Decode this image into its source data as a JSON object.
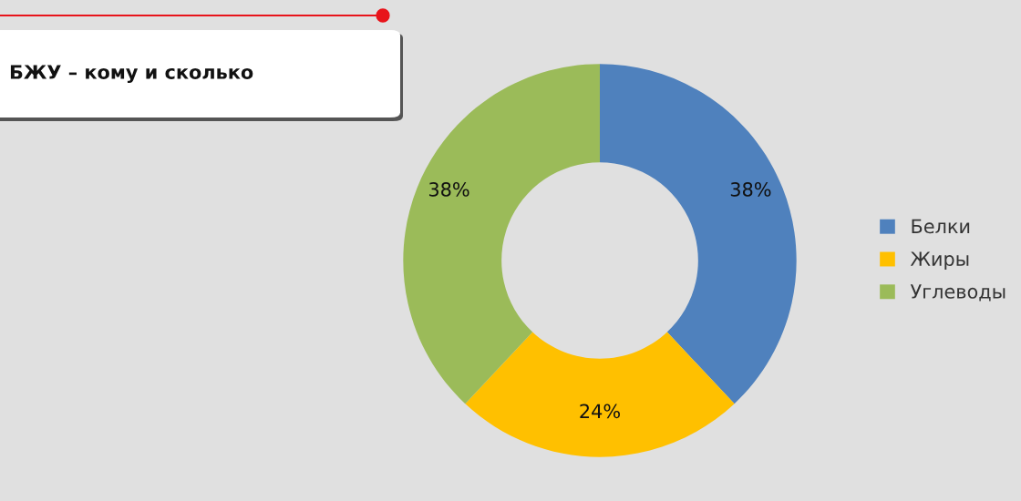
{
  "chart_data": {
    "type": "donut",
    "title": "БЖУ – кому и сколько",
    "categories": [
      "Белки",
      "Жиры",
      "Углеводы"
    ],
    "values": [
      38,
      24,
      38
    ],
    "colors": [
      "#4f81bd",
      "#ffc000",
      "#9bbb59"
    ],
    "value_labels": [
      "38%",
      "24%",
      "38%"
    ],
    "legend": "right"
  }
}
